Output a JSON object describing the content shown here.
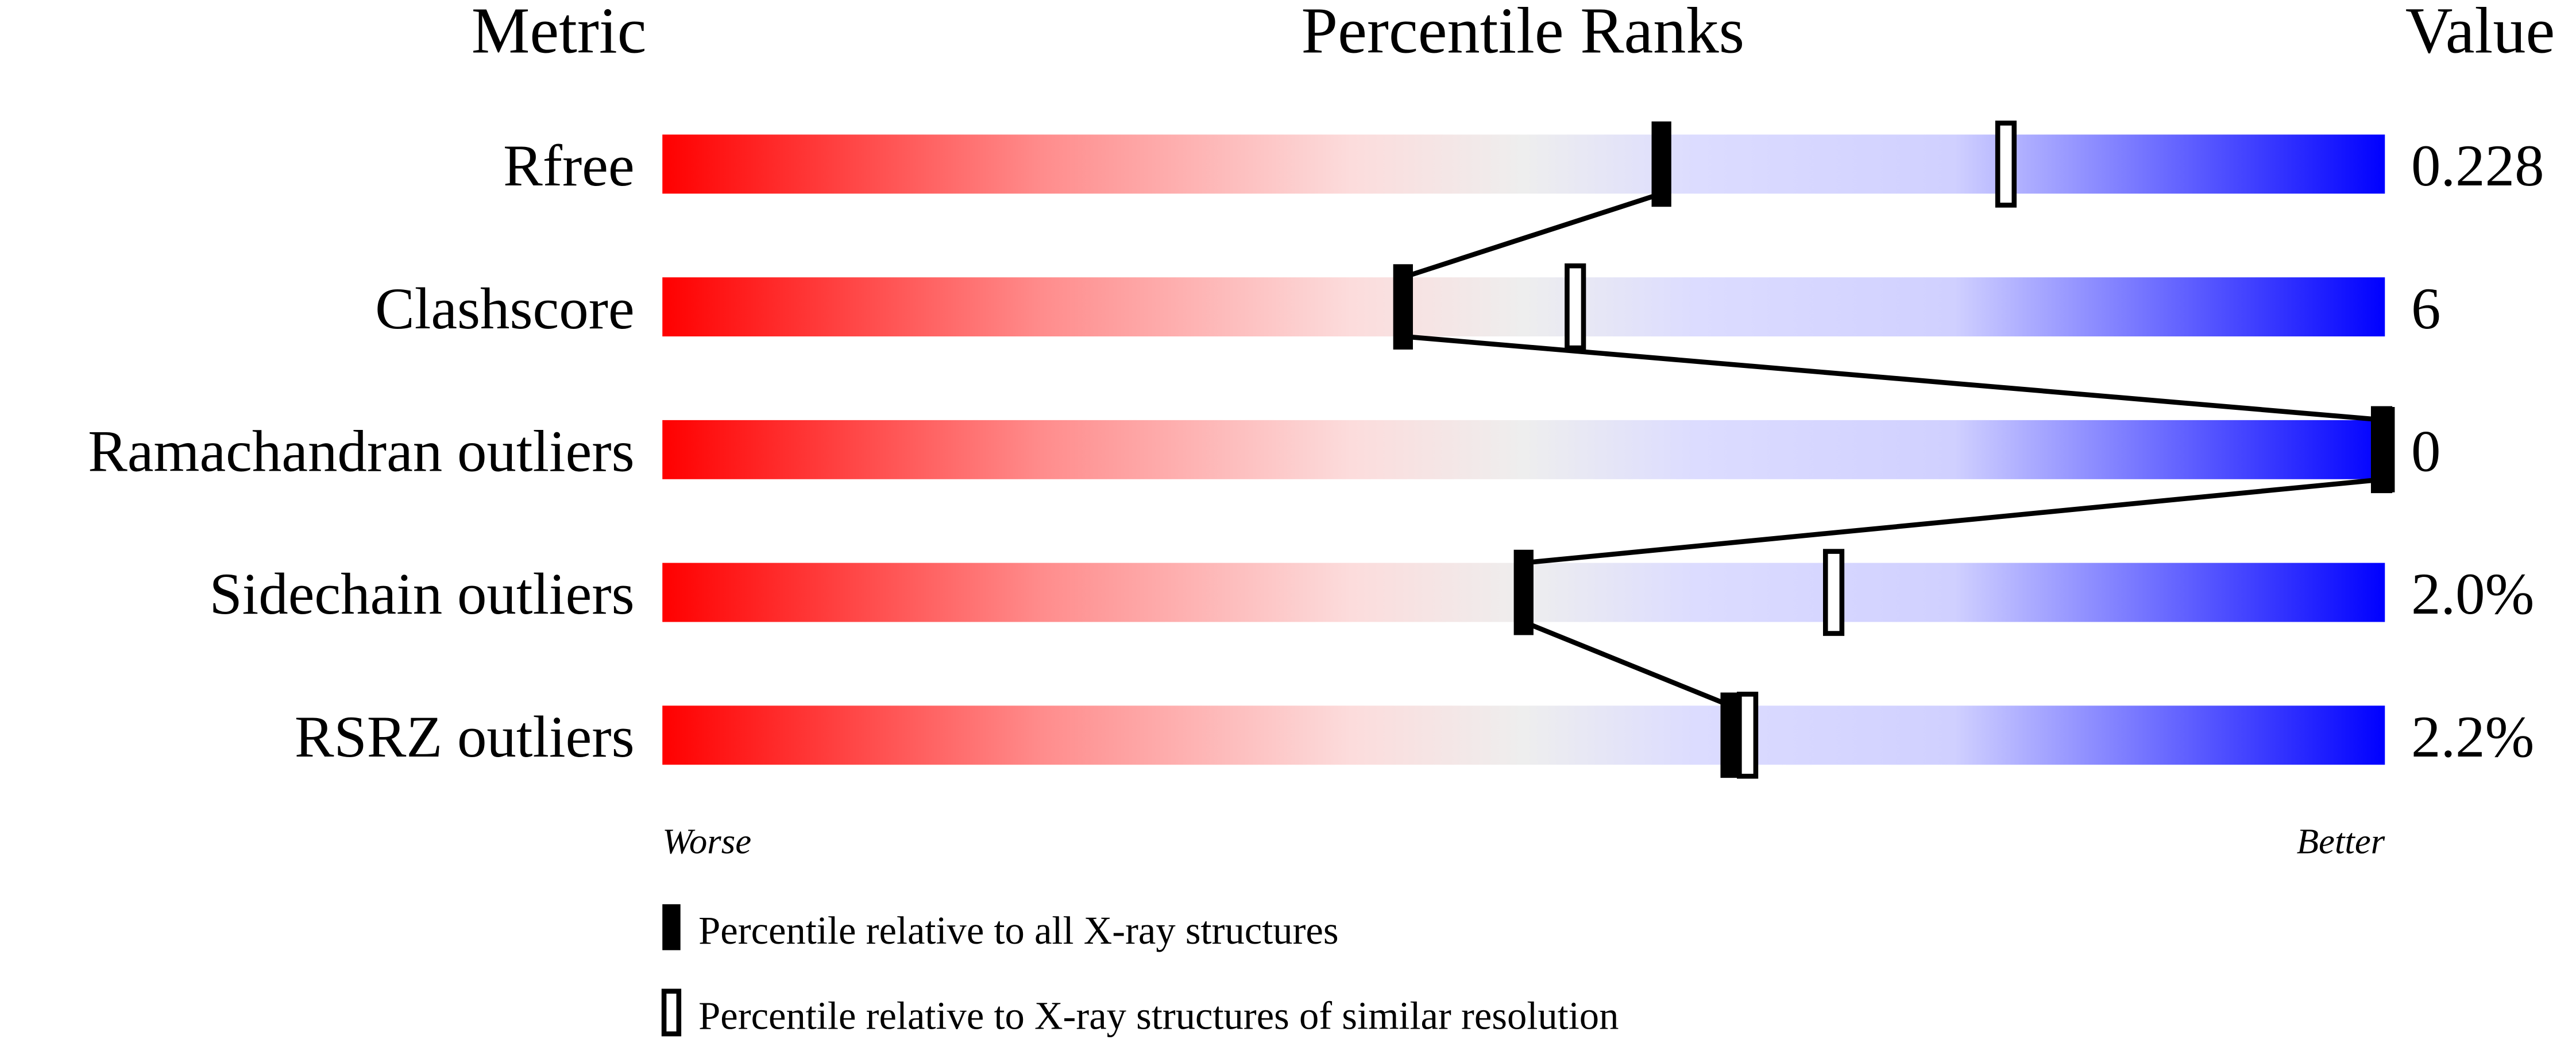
{
  "chart_data": {
    "type": "bar",
    "headers": {
      "metric": "Metric",
      "ranks": "Percentile Ranks",
      "value": "Value"
    },
    "xlim": [
      0,
      100
    ],
    "axis_labels": {
      "left": "Worse",
      "right": "Better"
    },
    "gradient_colors": {
      "worse": "#ff0000",
      "middle": "#eeeeee",
      "better": "#0000ff"
    },
    "rows": [
      {
        "metric": "Rfree",
        "value": "0.228",
        "percentile_all": 58,
        "percentile_similar": 78
      },
      {
        "metric": "Clashscore",
        "value": "6",
        "percentile_all": 43,
        "percentile_similar": 53
      },
      {
        "metric": "Ramachandran outliers",
        "value": "0",
        "percentile_all": 100,
        "percentile_similar": 100
      },
      {
        "metric": "Sidechain outliers",
        "value": "2.0%",
        "percentile_all": 50,
        "percentile_similar": 68
      },
      {
        "metric": "RSRZ outliers",
        "value": "2.2%",
        "percentile_all": 62,
        "percentile_similar": 63
      }
    ],
    "legend": [
      {
        "marker": "filled",
        "label": "Percentile relative to all X-ray structures"
      },
      {
        "marker": "open",
        "label": "Percentile relative to X-ray structures of similar resolution"
      }
    ]
  }
}
